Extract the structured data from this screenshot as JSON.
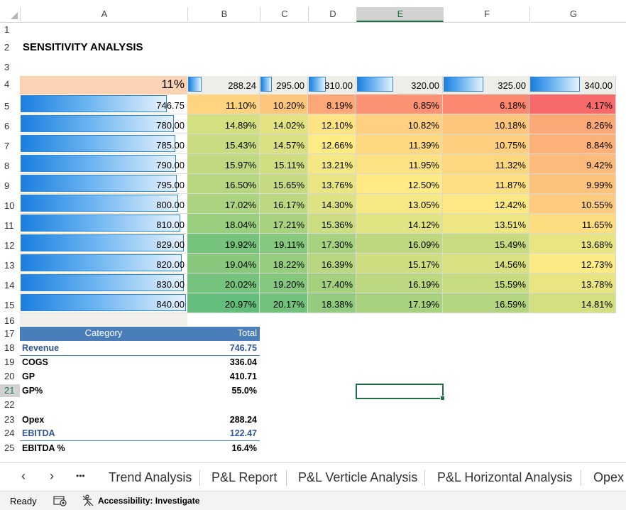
{
  "columns": [
    "A",
    "B",
    "C",
    "D",
    "E",
    "F",
    "G"
  ],
  "rows": [
    "1",
    "2",
    "3",
    "4",
    "5",
    "6",
    "7",
    "8",
    "9",
    "10",
    "11",
    "12",
    "13",
    "14",
    "15",
    "16",
    "17",
    "18",
    "19",
    "20",
    "21",
    "22",
    "23",
    "24",
    "25"
  ],
  "title": "SENSITIVITY ANALYSIS",
  "corner_value": "11%",
  "header_values": [
    "288.24",
    "295.00",
    "310.00",
    "320.00",
    "325.00",
    "340.00"
  ],
  "header_bar_fraction": [
    0.19,
    0.24,
    0.35,
    0.42,
    0.46,
    0.57
  ],
  "row_values": [
    "746.75",
    "780.00",
    "785.00",
    "790.00",
    "795.00",
    "800.00",
    "810.00",
    "829.00",
    "820.00",
    "830.00",
    "840.00"
  ],
  "row_bar_fraction": [
    0.884,
    0.929,
    0.935,
    0.94,
    0.946,
    0.952,
    0.964,
    0.987,
    0.976,
    0.988,
    1.0
  ],
  "grid": [
    [
      "11.10%",
      "10.20%",
      "8.19%",
      "6.85%",
      "6.18%",
      "4.17%"
    ],
    [
      "14.89%",
      "14.02%",
      "12.10%",
      "10.82%",
      "10.18%",
      "8.26%"
    ],
    [
      "15.43%",
      "14.57%",
      "12.66%",
      "11.39%",
      "10.75%",
      "8.84%"
    ],
    [
      "15.97%",
      "15.11%",
      "13.21%",
      "11.95%",
      "11.32%",
      "9.42%"
    ],
    [
      "16.50%",
      "15.65%",
      "13.76%",
      "12.50%",
      "11.87%",
      "9.99%"
    ],
    [
      "17.02%",
      "16.17%",
      "14.30%",
      "13.05%",
      "12.42%",
      "10.55%"
    ],
    [
      "18.04%",
      "17.21%",
      "15.36%",
      "14.12%",
      "13.51%",
      "11.65%"
    ],
    [
      "19.92%",
      "19.11%",
      "17.30%",
      "16.09%",
      "15.49%",
      "13.68%"
    ],
    [
      "19.04%",
      "18.22%",
      "16.39%",
      "15.17%",
      "14.56%",
      "12.73%"
    ],
    [
      "20.02%",
      "19.20%",
      "17.40%",
      "16.19%",
      "15.59%",
      "13.78%"
    ],
    [
      "20.97%",
      "20.17%",
      "18.38%",
      "17.19%",
      "16.59%",
      "14.81%"
    ]
  ],
  "scale_colors": {
    "low": "#f8696b",
    "mid": "#ffeb84",
    "high": "#63be7b"
  },
  "table": {
    "header": [
      "Category",
      "Total"
    ],
    "rows": [
      {
        "label": "Revenue",
        "value": "746.75",
        "style": "blue"
      },
      {
        "label": "COGS",
        "value": "336.04",
        "style": "plain"
      },
      {
        "label": "GP",
        "value": "410.71",
        "style": "plain"
      },
      {
        "label": "GP%",
        "value": "55.0%",
        "style": "plain"
      },
      {
        "label": "",
        "value": "",
        "style": "plain"
      },
      {
        "label": "Opex",
        "value": "288.24",
        "style": "plain"
      },
      {
        "label": "EBITDA",
        "value": "122.47",
        "style": "blue"
      },
      {
        "label": "EBITDA %",
        "value": "16.4%",
        "style": "plain"
      }
    ]
  },
  "sheet_tabs": [
    "Trend Analysis",
    "P&L Report",
    "P&L Verticle Analysis",
    "P&L Horizontal Analysis",
    "Opex"
  ],
  "nav": {
    "prev": "‹",
    "next": "›",
    "more": "•••"
  },
  "status": {
    "ready": "Ready",
    "accessibility": "Accessibility: Investigate"
  }
}
